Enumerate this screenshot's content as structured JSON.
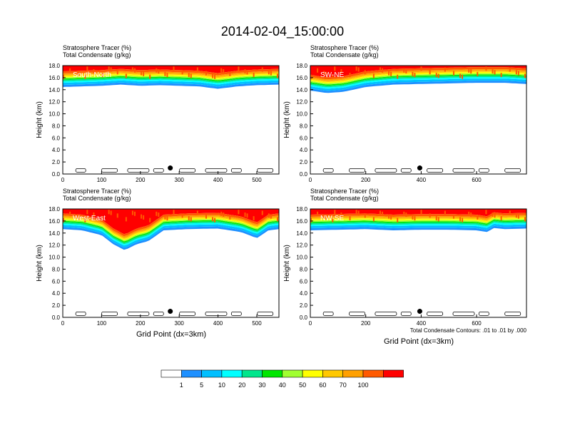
{
  "page_title": "2014-02-04_15:00:00",
  "footnote": "Total Condensate Contours: .01 to .01 by .000",
  "xlabel": "Grid Point (dx=3km)",
  "ylabel": "Height (km)",
  "colors": {
    "contour": "#000000",
    "axes": "#000000",
    "panel_label": "#ffffff"
  },
  "chart_data": [
    {
      "type": "heatmap",
      "panel": "South-North",
      "title_line1": "Stratosphere Tracer   (%)",
      "title_line2": "Total Condensate   (g/kg)",
      "xlim": [
        0,
        557
      ],
      "ylim": [
        0,
        18
      ],
      "xticks": [
        0,
        100,
        200,
        300,
        400,
        500
      ],
      "yticks": [
        0,
        2,
        4,
        6,
        8,
        10,
        12,
        14,
        16,
        18
      ],
      "yticklabels": [
        "0.0",
        "2.0",
        "4.0",
        "6.0",
        "8.0",
        "10.0",
        "12.0",
        "14.0",
        "16.0",
        "18.0"
      ],
      "marker": {
        "x": 277,
        "y": 1.0
      },
      "tropopause_km": {
        "x": [
          0,
          50,
          100,
          150,
          200,
          250,
          300,
          350,
          400,
          450,
          500,
          557
        ],
        "base": [
          14.8,
          14.9,
          15.0,
          15.2,
          15.0,
          15.1,
          15.0,
          14.9,
          14.5,
          14.9,
          15.1,
          15.2
        ]
      }
    },
    {
      "type": "heatmap",
      "panel": "SW-NE",
      "title_line1": "Stratosphere Tracer   (%)",
      "title_line2": "Total Condensate   (g/kg)",
      "xlim": [
        0,
        780
      ],
      "ylim": [
        0,
        18
      ],
      "xticks": [
        0,
        200,
        400,
        600
      ],
      "yticks": [
        0,
        2,
        4,
        6,
        8,
        10,
        12,
        14,
        16,
        18
      ],
      "yticklabels": [
        "0.0",
        "2.0",
        "4.0",
        "6.0",
        "8.0",
        "10.0",
        "12.0",
        "14.0",
        "16.0",
        "18.0"
      ],
      "marker": {
        "x": 395,
        "y": 1.0
      },
      "tropopause_km": {
        "x": [
          0,
          60,
          120,
          200,
          300,
          400,
          500,
          600,
          700,
          780
        ],
        "base": [
          14.2,
          13.8,
          14.0,
          14.8,
          15.2,
          15.3,
          15.4,
          15.5,
          15.5,
          15.3
        ]
      }
    },
    {
      "type": "heatmap",
      "panel": "West-East",
      "title_line1": "Stratosphere Tracer   (%)",
      "title_line2": "Total Condensate   (g/kg)",
      "xlim": [
        0,
        557
      ],
      "ylim": [
        0,
        18
      ],
      "xticks": [
        0,
        100,
        200,
        300,
        400,
        500
      ],
      "yticks": [
        0,
        2,
        4,
        6,
        8,
        10,
        12,
        14,
        16,
        18
      ],
      "yticklabels": [
        "0.0",
        "2.0",
        "4.0",
        "6.0",
        "8.0",
        "10.0",
        "12.0",
        "14.0",
        "16.0",
        "18.0"
      ],
      "marker": {
        "x": 277,
        "y": 1.0
      },
      "tropopause_km": {
        "x": [
          0,
          50,
          100,
          130,
          160,
          190,
          220,
          260,
          320,
          400,
          460,
          500,
          530,
          557
        ],
        "base": [
          15.0,
          14.8,
          14.0,
          12.5,
          11.5,
          12.5,
          13.0,
          14.8,
          15.0,
          15.1,
          14.5,
          13.5,
          14.8,
          15.0
        ]
      }
    },
    {
      "type": "heatmap",
      "panel": "NW-SE",
      "title_line1": "Stratosphere Tracer   (%)",
      "title_line2": "Total Condensate   (g/kg)",
      "xlim": [
        0,
        780
      ],
      "ylim": [
        0,
        18
      ],
      "xticks": [
        0,
        200,
        400,
        600
      ],
      "yticks": [
        0,
        2,
        4,
        6,
        8,
        10,
        12,
        14,
        16,
        18
      ],
      "yticklabels": [
        "0.0",
        "2.0",
        "4.0",
        "6.0",
        "8.0",
        "10.0",
        "12.0",
        "14.0",
        "16.0",
        "18.0"
      ],
      "marker": {
        "x": 395,
        "y": 1.0
      },
      "tropopause_km": {
        "x": [
          0,
          100,
          200,
          300,
          400,
          500,
          600,
          640,
          660,
          700,
          780
        ],
        "base": [
          14.8,
          14.9,
          15.0,
          14.8,
          14.9,
          14.9,
          14.8,
          14.5,
          15.2,
          15.0,
          15.1
        ]
      }
    }
  ],
  "colorbar": {
    "levels": [
      "1",
      "5",
      "10",
      "20",
      "30",
      "40",
      "50",
      "60",
      "70",
      "100"
    ],
    "colors": [
      "#ffffff",
      "#1e90ff",
      "#00bfff",
      "#00ffff",
      "#00e68c",
      "#00e600",
      "#a0ff30",
      "#ffff00",
      "#ffc800",
      "#ffa000",
      "#ff5a00",
      "#ff0000"
    ]
  }
}
